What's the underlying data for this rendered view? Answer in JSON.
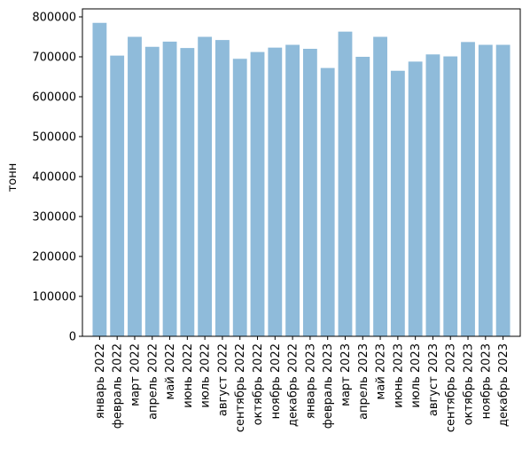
{
  "chart_data": {
    "type": "bar",
    "title": "",
    "xlabel": "",
    "ylabel": "тонн",
    "ylim": [
      0,
      820000
    ],
    "yticks": [
      0,
      100000,
      200000,
      300000,
      400000,
      500000,
      600000,
      700000,
      800000
    ],
    "grid": false,
    "bar_color": "#8fbbda",
    "categories": [
      "январь 2022",
      "февраль 2022",
      "март 2022",
      "апрель 2022",
      "май 2022",
      "июнь 2022",
      "июль 2022",
      "август 2022",
      "сентябрь 2022",
      "октябрь 2022",
      "ноябрь 2022",
      "декабрь 2022",
      "январь 2023",
      "февраль 2023",
      "март 2023",
      "апрель 2023",
      "май 2023",
      "июнь 2023",
      "июль 2023",
      "август 2023",
      "сентябрь 2023",
      "октябрь 2023",
      "ноябрь 2023",
      "декабрь 2023"
    ],
    "values": [
      785000,
      703000,
      750000,
      725000,
      738000,
      722000,
      750000,
      742000,
      695000,
      712000,
      723000,
      730000,
      720000,
      672000,
      763000,
      700000,
      750000,
      665000,
      688000,
      706000,
      701000,
      737000,
      730000,
      730000
    ]
  }
}
